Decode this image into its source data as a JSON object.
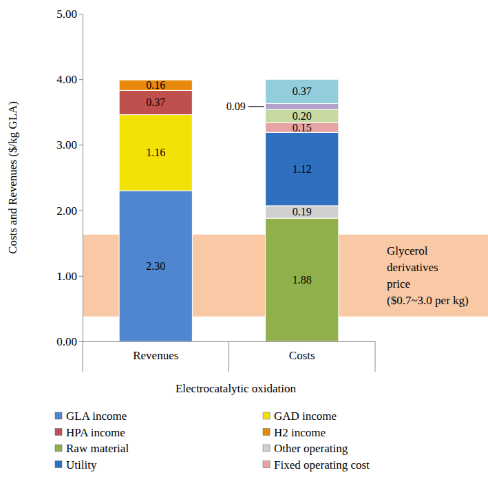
{
  "chart_data": {
    "type": "bar",
    "stacked": true,
    "data_labels": true,
    "grid": false,
    "legend": "bottom",
    "y_label": "Costs and Revenues ($/kg GLA)",
    "x_label": "Electrocatalytic oxidation",
    "categories": [
      "Revenues",
      "Costs"
    ],
    "ylim": [
      0,
      5
    ],
    "yticks": [
      {
        "value": 0,
        "label": "0.00"
      },
      {
        "value": 1,
        "label": "1.00"
      },
      {
        "value": 2,
        "label": "2.00"
      },
      {
        "value": 3,
        "label": "3.00"
      },
      {
        "value": 4,
        "label": "4.00"
      },
      {
        "value": 5,
        "label": "5.00"
      }
    ],
    "series": [
      {
        "name": "GLA income",
        "color": "#4f86cf",
        "values": [
          2.3,
          null
        ],
        "value_labels": [
          "2.30",
          null
        ]
      },
      {
        "name": "GAD income",
        "color": "#f2e205",
        "values": [
          1.16,
          null
        ],
        "value_labels": [
          "1.16",
          null
        ]
      },
      {
        "name": "HPA income",
        "color": "#c0504d",
        "values": [
          0.37,
          null
        ],
        "value_labels": [
          "0.37",
          null
        ]
      },
      {
        "name": "H2 income",
        "color": "#e8890c",
        "values": [
          0.16,
          null
        ],
        "value_labels": [
          "0.16",
          null
        ]
      },
      {
        "name": "Raw material",
        "color": "#8fb04a",
        "values": [
          null,
          1.88
        ],
        "value_labels": [
          null,
          "1.88"
        ]
      },
      {
        "name": "Other operating",
        "color": "#d0d0d0",
        "values": [
          null,
          0.19
        ],
        "value_labels": [
          null,
          "0.19"
        ]
      },
      {
        "name": "Utility",
        "color": "#2f6fbf",
        "values": [
          null,
          1.12
        ],
        "value_labels": [
          null,
          "1.12"
        ]
      },
      {
        "name": "Fixed operating cost",
        "color": "#e6a3a3",
        "values": [
          null,
          0.15
        ],
        "value_labels": [
          null,
          "0.15"
        ]
      },
      {
        "color": "#c6d9a0",
        "values": [
          null,
          0.2
        ],
        "value_labels": [
          null,
          "0.20"
        ]
      },
      {
        "color": "#b3a2c7",
        "values": [
          null,
          0.09
        ],
        "value_labels": [
          null,
          "0.09"
        ]
      },
      {
        "color": "#93cddd",
        "values": [
          null,
          0.37
        ],
        "value_labels": [
          null,
          "0.37"
        ]
      }
    ],
    "shaded_range": {
      "y0": 0.38,
      "y1": 1.63,
      "color": "#f9c9a6",
      "label": [
        "Glycerol",
        "derivatives",
        "price",
        "($0.7~3.0 per kg)"
      ]
    }
  }
}
